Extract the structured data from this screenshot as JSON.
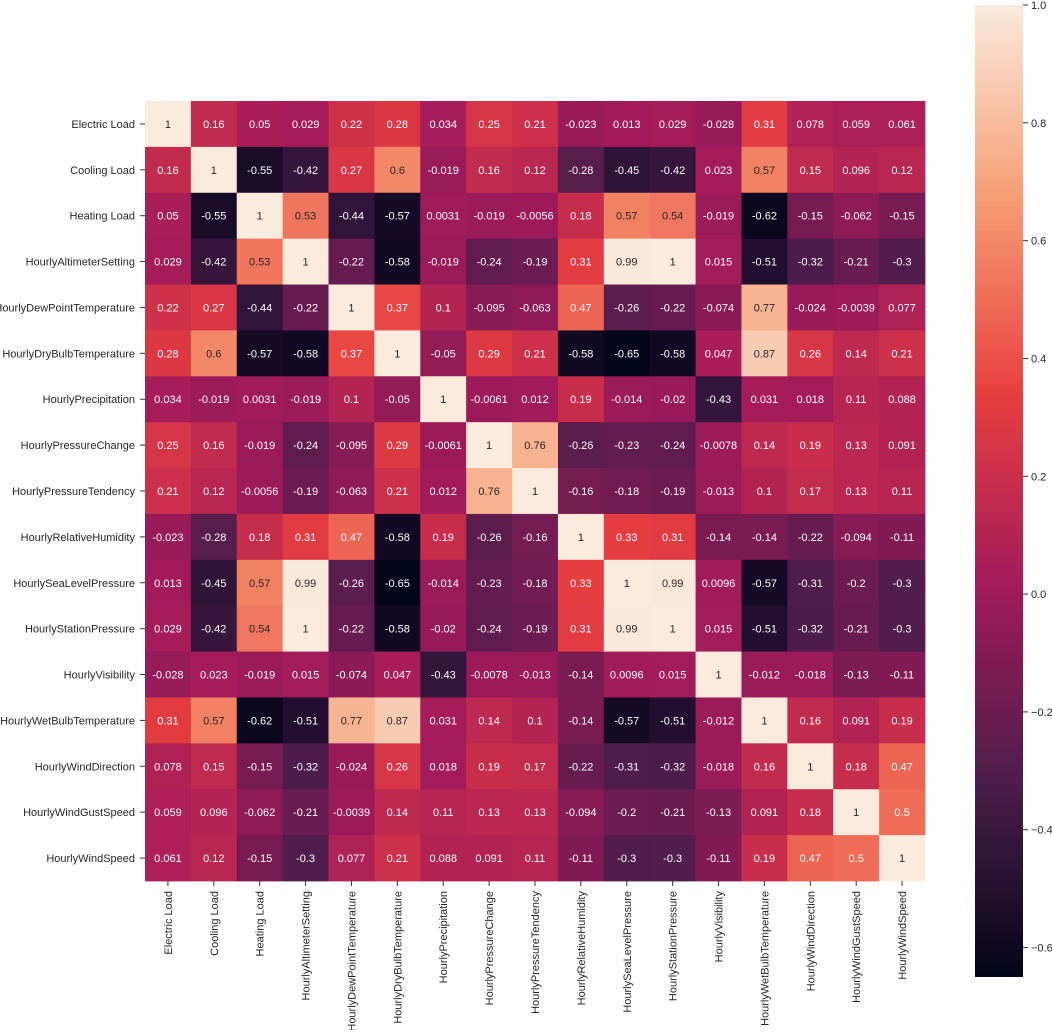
{
  "chart_data": {
    "type": "heatmap",
    "title": "",
    "labels": [
      "Electric Load",
      "Cooling Load",
      "Heating Load",
      "HourlyAltimeterSetting",
      "HourlyDewPointTemperature",
      "HourlyDryBulbTemperature",
      "HourlyPrecipitation",
      "HourlyPressureChange",
      "HourlyPressureTendency",
      "HourlyRelativeHumidity",
      "HourlySeaLevelPressure",
      "HourlyStationPressure",
      "HourlyVisibility",
      "HourlyWetBulbTemperature",
      "HourlyWindDirection",
      "HourlyWindGustSpeed",
      "HourlyWindSpeed"
    ],
    "values": [
      [
        "1",
        "0.16",
        "0.05",
        "0.029",
        "0.22",
        "0.28",
        "0.034",
        "0.25",
        "0.21",
        "-0.023",
        "0.013",
        "0.029",
        "-0.028",
        "0.31",
        "0.078",
        "0.059",
        "0.061"
      ],
      [
        "0.16",
        "1",
        "-0.55",
        "-0.42",
        "0.27",
        "0.6",
        "-0.019",
        "0.16",
        "0.12",
        "-0.28",
        "-0.45",
        "-0.42",
        "0.023",
        "0.57",
        "0.15",
        "0.096",
        "0.12"
      ],
      [
        "0.05",
        "-0.55",
        "1",
        "0.53",
        "-0.44",
        "-0.57",
        "0.0031",
        "-0.019",
        "-0.0056",
        "0.18",
        "0.57",
        "0.54",
        "-0.019",
        "-0.62",
        "-0.15",
        "-0.062",
        "-0.15"
      ],
      [
        "0.029",
        "-0.42",
        "0.53",
        "1",
        "-0.22",
        "-0.58",
        "-0.019",
        "-0.24",
        "-0.19",
        "0.31",
        "0.99",
        "1",
        "0.015",
        "-0.51",
        "-0.32",
        "-0.21",
        "-0.3"
      ],
      [
        "0.22",
        "0.27",
        "-0.44",
        "-0.22",
        "1",
        "0.37",
        "0.1",
        "-0.095",
        "-0.063",
        "0.47",
        "-0.26",
        "-0.22",
        "-0.074",
        "0.77",
        "-0.024",
        "-0.0039",
        "0.077"
      ],
      [
        "0.28",
        "0.6",
        "-0.57",
        "-0.58",
        "0.37",
        "1",
        "-0.05",
        "0.29",
        "0.21",
        "-0.58",
        "-0.65",
        "-0.58",
        "0.047",
        "0.87",
        "0.26",
        "0.14",
        "0.21"
      ],
      [
        "0.034",
        "-0.019",
        "0.0031",
        "-0.019",
        "0.1",
        "-0.05",
        "1",
        "-0.0061",
        "0.012",
        "0.19",
        "-0.014",
        "-0.02",
        "-0.43",
        "0.031",
        "0.018",
        "0.11",
        "0.088"
      ],
      [
        "0.25",
        "0.16",
        "-0.019",
        "-0.24",
        "-0.095",
        "0.29",
        "-0.0061",
        "1",
        "0.76",
        "-0.26",
        "-0.23",
        "-0.24",
        "-0.0078",
        "0.14",
        "0.19",
        "0.13",
        "0.091"
      ],
      [
        "0.21",
        "0.12",
        "-0.0056",
        "-0.19",
        "-0.063",
        "0.21",
        "0.012",
        "0.76",
        "1",
        "-0.16",
        "-0.18",
        "-0.19",
        "-0.013",
        "0.1",
        "0.17",
        "0.13",
        "0.11"
      ],
      [
        "-0.023",
        "-0.28",
        "0.18",
        "0.31",
        "0.47",
        "-0.58",
        "0.19",
        "-0.26",
        "-0.16",
        "1",
        "0.33",
        "0.31",
        "-0.14",
        "-0.14",
        "-0.22",
        "-0.094",
        "-0.11"
      ],
      [
        "0.013",
        "-0.45",
        "0.57",
        "0.99",
        "-0.26",
        "-0.65",
        "-0.014",
        "-0.23",
        "-0.18",
        "0.33",
        "1",
        "0.99",
        "0.0096",
        "-0.57",
        "-0.31",
        "-0.2",
        "-0.3"
      ],
      [
        "0.029",
        "-0.42",
        "0.54",
        "1",
        "-0.22",
        "-0.58",
        "-0.02",
        "-0.24",
        "-0.19",
        "0.31",
        "0.99",
        "1",
        "0.015",
        "-0.51",
        "-0.32",
        "-0.21",
        "-0.3"
      ],
      [
        "-0.028",
        "0.023",
        "-0.019",
        "0.015",
        "-0.074",
        "0.047",
        "-0.43",
        "-0.0078",
        "-0.013",
        "-0.14",
        "0.0096",
        "0.015",
        "1",
        "-0.012",
        "-0.018",
        "-0.13",
        "-0.11"
      ],
      [
        "0.31",
        "0.57",
        "-0.62",
        "-0.51",
        "0.77",
        "0.87",
        "0.031",
        "0.14",
        "0.1",
        "-0.14",
        "-0.57",
        "-0.51",
        "-0.012",
        "1",
        "0.16",
        "0.091",
        "0.19"
      ],
      [
        "0.078",
        "0.15",
        "-0.15",
        "-0.32",
        "-0.024",
        "0.26",
        "0.018",
        "0.19",
        "0.17",
        "-0.22",
        "-0.31",
        "-0.32",
        "-0.018",
        "0.16",
        "1",
        "0.18",
        "0.47"
      ],
      [
        "0.059",
        "0.096",
        "-0.062",
        "-0.21",
        "-0.0039",
        "0.14",
        "0.11",
        "0.13",
        "0.13",
        "-0.094",
        "-0.2",
        "-0.21",
        "-0.13",
        "0.091",
        "0.18",
        "1",
        "0.5"
      ],
      [
        "0.061",
        "0.12",
        "-0.15",
        "-0.3",
        "0.077",
        "0.21",
        "0.088",
        "0.091",
        "0.11",
        "-0.11",
        "-0.3",
        "-0.3",
        "-0.11",
        "0.19",
        "0.47",
        "0.5",
        "1"
      ]
    ],
    "colorbar": {
      "min": -0.65,
      "max": 1.0,
      "ticks": [
        "1.0",
        "0.8",
        "0.6",
        "0.4",
        "0.2",
        "0.0",
        "-0.2",
        "-0.4",
        "-0.6"
      ],
      "colormap": "rocket",
      "stops": [
        "#03051a",
        "#4c1d4b",
        "#a11a5b",
        "#e83f3f",
        "#f69c73",
        "#faebdd"
      ]
    },
    "grid": false,
    "legend": "right"
  }
}
